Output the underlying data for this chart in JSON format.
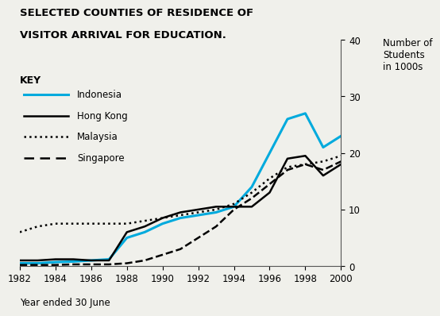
{
  "title_line1": "SELECTED COUNTIES OF RESIDENCE OF",
  "title_line2": "VISITOR ARRIVAL FOR EDUCATION.",
  "ylabel": "Number of\nStudents\nin 1000s",
  "xlabel": "Year ended 30 June",
  "years": [
    1982,
    1983,
    1984,
    1985,
    1986,
    1987,
    1988,
    1989,
    1990,
    1991,
    1992,
    1993,
    1994,
    1995,
    1996,
    1997,
    1998,
    1999,
    2000
  ],
  "indonesia": [
    0.5,
    0.5,
    0.7,
    0.8,
    1.0,
    1.2,
    5.0,
    6.0,
    7.5,
    8.5,
    9.0,
    9.5,
    10.5,
    14.0,
    20.0,
    26.0,
    27.0,
    21.0,
    23.0
  ],
  "hongkong": [
    1.0,
    1.0,
    1.2,
    1.2,
    1.0,
    1.0,
    6.0,
    7.0,
    8.5,
    9.5,
    10.0,
    10.5,
    10.5,
    10.5,
    13.0,
    19.0,
    19.5,
    16.0,
    18.0
  ],
  "malaysia": [
    6.0,
    7.0,
    7.5,
    7.5,
    7.5,
    7.5,
    7.5,
    8.0,
    8.5,
    9.0,
    9.5,
    10.0,
    11.0,
    13.0,
    15.5,
    17.5,
    18.0,
    18.5,
    19.5
  ],
  "singapore": [
    0.2,
    0.2,
    0.2,
    0.3,
    0.3,
    0.3,
    0.5,
    1.0,
    2.0,
    3.0,
    5.0,
    7.0,
    10.0,
    12.0,
    14.5,
    17.0,
    18.0,
    17.0,
    18.5
  ],
  "indonesia_color": "#00aadd",
  "hongkong_color": "#000000",
  "malaysia_color": "#000000",
  "singapore_color": "#000000",
  "ylim": [
    0,
    40
  ],
  "yticks": [
    0,
    10,
    20,
    30,
    40
  ],
  "xticks": [
    1982,
    1984,
    1986,
    1988,
    1990,
    1992,
    1994,
    1996,
    1998,
    2000
  ],
  "bg_color": "#f0f0eb"
}
